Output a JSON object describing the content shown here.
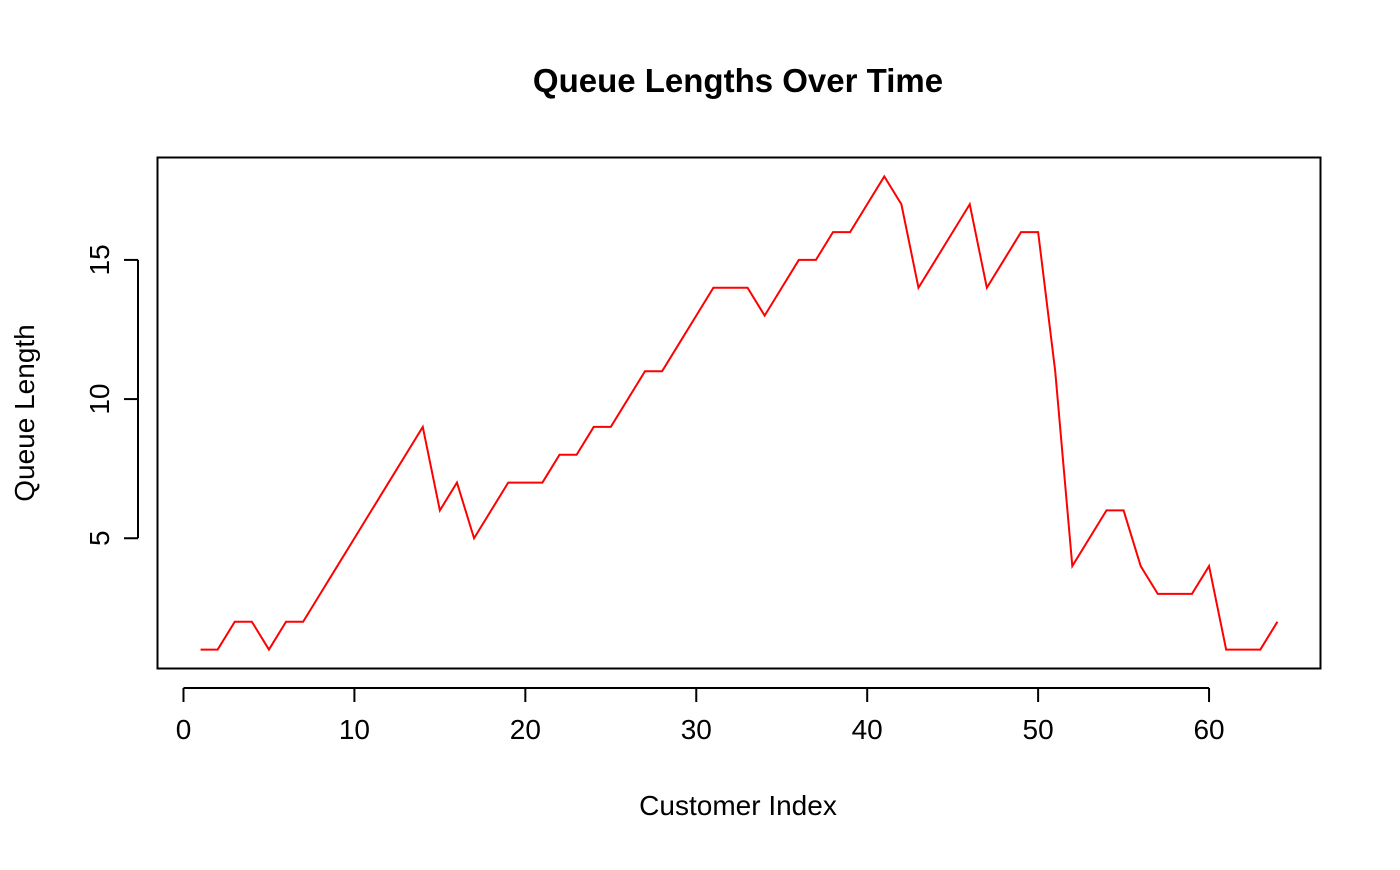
{
  "chart_data": {
    "type": "line",
    "title": "Queue Lengths Over Time",
    "xlabel": "Customer Index",
    "ylabel": "Queue Length",
    "xlim": [
      -1.52,
      66.52
    ],
    "ylim": [
      0.32,
      18.68
    ],
    "x_ticks": [
      0,
      10,
      20,
      30,
      40,
      50,
      60
    ],
    "y_ticks": [
      5,
      10,
      15
    ],
    "grid": false,
    "line_color": "#ff0000",
    "series": [
      {
        "x": [
          1,
          2,
          3,
          4,
          5,
          6,
          7,
          8,
          9,
          10,
          11,
          12,
          13,
          14,
          15,
          16,
          17,
          18,
          19,
          20,
          21,
          22,
          23,
          24,
          25,
          26,
          27,
          28,
          29,
          30,
          31,
          32,
          33,
          34,
          35,
          36,
          37,
          38,
          39,
          40,
          41,
          42,
          43,
          44,
          45,
          46,
          47,
          48,
          49,
          50,
          51,
          52,
          53,
          54,
          55,
          56,
          57,
          58,
          59,
          60,
          61,
          62,
          63,
          64
        ],
        "values": [
          1,
          1,
          2,
          2,
          1,
          2,
          2,
          3,
          4,
          5,
          6,
          7,
          8,
          9,
          6,
          7,
          5,
          6,
          7,
          7,
          7,
          8,
          8,
          9,
          9,
          10,
          11,
          11,
          12,
          13,
          14,
          14,
          14,
          13,
          14,
          15,
          15,
          16,
          16,
          17,
          18,
          17,
          14,
          15,
          16,
          17,
          14,
          15,
          16,
          16,
          11,
          4,
          5,
          6,
          6,
          4,
          3,
          3,
          3,
          4,
          1,
          1,
          1,
          2
        ]
      }
    ]
  }
}
